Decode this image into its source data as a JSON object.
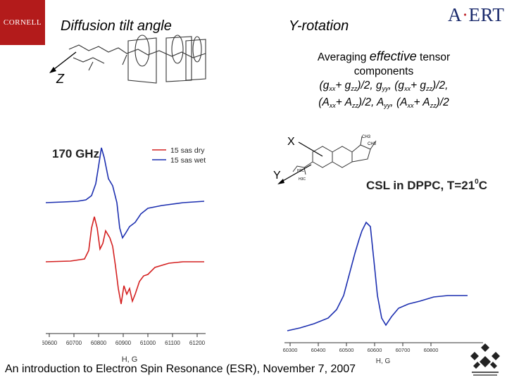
{
  "header": {
    "left_logo": "CORNELL",
    "right_logo_a": "A",
    "right_logo_b": "ERT",
    "title_left": "Diffusion tilt angle",
    "title_right": "Y-rotation"
  },
  "averaging": {
    "line1_pre": "Averaging ",
    "line1_italic": "effective",
    "line1_post": " tensor",
    "line2": "components",
    "g_open": "(g",
    "g_xx": "xx",
    "g_plus": "+ g",
    "g_zz": "zz",
    "g_close": ")/2,",
    "g_gyy": " g",
    "g_yy": "yy",
    "g_comma": ", (g",
    "g_xx2": "xx",
    "g_plus2": "+ g",
    "g_zz2": "zz",
    "g_close2": ")/2,",
    "a_open": "(A",
    "a_xx": "xx",
    "a_plus": "+ A",
    "a_zz": "zz",
    "a_close": ")/2, A",
    "a_yy": "yy",
    "a_comma": ", (A",
    "a_xx2": "xx",
    "a_plus2": "+ A",
    "a_zz2": "zz",
    "a_close2": ")/2"
  },
  "molecule_labels": {
    "z_axis": "Z",
    "x_axis": "X",
    "y_axis": "Y"
  },
  "chart_data": [
    {
      "type": "line",
      "title": "170 GHz",
      "xlabel": "H, G",
      "x_tick_labels": [
        "60600",
        "60700",
        "60800",
        "60900",
        "61000",
        "61100",
        "61200"
      ],
      "series": [
        {
          "name": "15 sas dry",
          "color": "#d42020"
        },
        {
          "name": "15 sas wet",
          "color": "#1c2fb0"
        }
      ],
      "legend_position": "top-right"
    },
    {
      "type": "line",
      "title": "CSL in DPPC, T=21",
      "title_degree": "0",
      "title_unit": "C",
      "xlabel": "H, G",
      "x_tick_labels": [
        "60300",
        "60400",
        "60500",
        "60600",
        "60700",
        "60800"
      ],
      "series": [
        {
          "color": "#1c2fb0"
        }
      ]
    }
  ],
  "footer": {
    "text": "An introduction to Electron Spin Resonance (ESR), November 7, 2007"
  },
  "colors": {
    "cornell_red": "#b31b1b",
    "acert_blue": "#1a2a6c",
    "dry_red": "#d42020",
    "wet_blue": "#1c2fb0"
  }
}
